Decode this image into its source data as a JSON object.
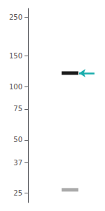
{
  "chart_data": {
    "type": "gel",
    "log": "y",
    "ylim": [
      22,
      280
    ],
    "yticks": [
      250,
      150,
      100,
      75,
      50,
      37,
      25
    ],
    "tick_labels": "y",
    "grid": false,
    "series": [
      {
        "type": "band",
        "color": "#1a1a1a",
        "values": [
          120
        ]
      },
      {
        "type": "band",
        "color": "#aaaaaa",
        "values": [
          26
        ]
      },
      {
        "type": "arrow",
        "color": "#1aadad",
        "values": [
          120
        ]
      }
    ]
  }
}
